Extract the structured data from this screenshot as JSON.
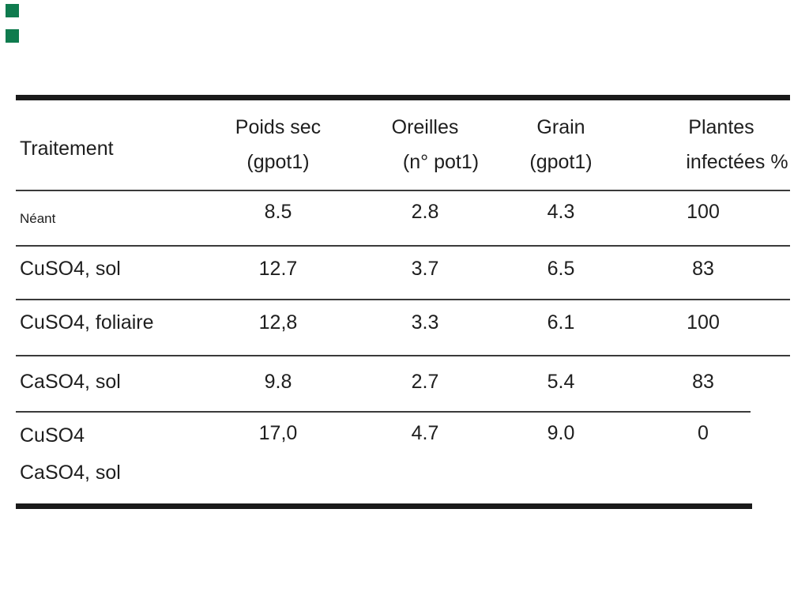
{
  "page": {
    "background": "#ffffff",
    "text_color": "#1e1e1e",
    "accent_green": "#0f7b4e",
    "decoration": {
      "top_square_icon": "green-square",
      "bottom_square_icon": "green-square"
    }
  },
  "table": {
    "columns": [
      {
        "line1": "Traitement",
        "line2": ""
      },
      {
        "line1": "Poids sec",
        "line2": "(gpot1)"
      },
      {
        "line1": "Oreilles",
        "line2": "(n° pot1)"
      },
      {
        "line1": "Grain",
        "line2": "(gpot1)"
      },
      {
        "line1": "Plantes",
        "line2": "infectées %"
      }
    ],
    "rows": [
      {
        "t1": "Néant",
        "t2": "",
        "values": [
          "8.5",
          "2.8",
          "4.3",
          "100"
        ]
      },
      {
        "t1": "CuSO4, sol",
        "t2": "",
        "values": [
          "12.7",
          "3.7",
          "6.5",
          "83"
        ]
      },
      {
        "t1": "CuSO4, foliaire",
        "t2": "",
        "values": [
          "12,8",
          "3.3",
          "6.1",
          "100"
        ]
      },
      {
        "t1": "CaSO4, sol",
        "t2": "",
        "values": [
          "9.8",
          "2.7",
          "5.4",
          "83"
        ]
      },
      {
        "t1": "CuSO4",
        "t2": "CaSO4, sol",
        "values": [
          "17,0",
          "4.7",
          "9.0",
          "0"
        ]
      }
    ]
  },
  "chart_data": {
    "type": "table",
    "title": "",
    "columns": [
      "Traitement",
      "Poids sec (gpot1)",
      "Oreilles (n° pot1)",
      "Grain (gpot1)",
      "Plantes infectées %"
    ],
    "rows": [
      [
        "Néant",
        "8.5",
        "2.8",
        "4.3",
        "100"
      ],
      [
        "CuSO4, sol",
        "12.7",
        "3.7",
        "6.5",
        "83"
      ],
      [
        "CuSO4, foliaire",
        "12,8",
        "3.3",
        "6.1",
        "100"
      ],
      [
        "CaSO4, sol",
        "9.8",
        "2.7",
        "5.4",
        "83"
      ],
      [
        "CuSO4 CaSO4, sol",
        "17,0",
        "4.7",
        "9.0",
        "0"
      ]
    ]
  }
}
